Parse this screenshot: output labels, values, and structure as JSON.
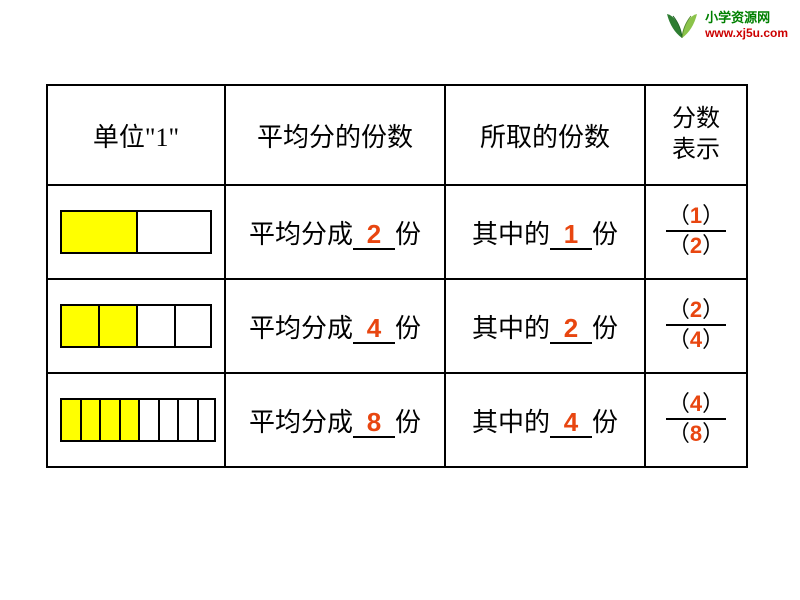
{
  "logo": {
    "line1": "小学资源网",
    "line2": "www.xj5u.com",
    "leaf_color_left": "#2e7d32",
    "leaf_color_right": "#8bc34a"
  },
  "headers": {
    "unit": "单位\"1\"",
    "divided": "平均分的份数",
    "taken": "所取的份数",
    "fraction_line1": "分数",
    "fraction_line2": "表示"
  },
  "rows": [
    {
      "total_parts": 2,
      "filled_parts": 1,
      "seg_width": 76,
      "divided_prefix": "平均分成",
      "divided_value": "2",
      "divided_suffix": "份",
      "taken_prefix": "其中的",
      "taken_value": "1",
      "taken_suffix": "份",
      "numerator": "1",
      "denominator": "2"
    },
    {
      "total_parts": 4,
      "filled_parts": 2,
      "seg_width": 38,
      "divided_prefix": "平均分成",
      "divided_value": "4",
      "divided_suffix": "份",
      "taken_prefix": "其中的",
      "taken_value": "2",
      "taken_suffix": "份",
      "numerator": "2",
      "denominator": "4"
    },
    {
      "total_parts": 8,
      "filled_parts": 4,
      "seg_width": 19.5,
      "divided_prefix": "平均分成",
      "divided_value": "8",
      "divided_suffix": "份",
      "taken_prefix": "其中的",
      "taken_value": "4",
      "taken_suffix": "份",
      "numerator": "4",
      "denominator": "8"
    }
  ],
  "colors": {
    "answer": "#e84610",
    "fill": "#ffff00",
    "border": "#000000"
  }
}
